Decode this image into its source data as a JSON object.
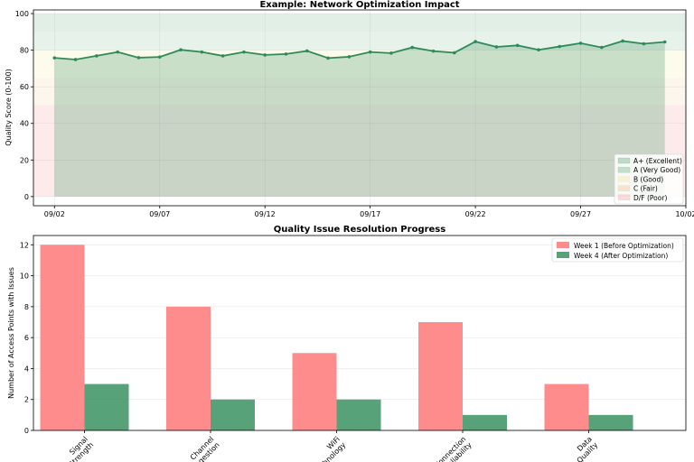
{
  "colors": {
    "excellent": "#2e8b57",
    "very_good": "#3c9a54",
    "good": "#f3e27a",
    "fair": "#f0b36a",
    "poor": "#f08080",
    "line": "#2e8b57",
    "before": "#ff7f7f",
    "after": "#2e8b57"
  },
  "chart_data": [
    {
      "type": "line",
      "title": "Example: Network Optimization Impact",
      "xlabel": "",
      "ylabel": "Quality Score (0-100)",
      "ylim": [
        -5,
        102
      ],
      "yticks": [
        0,
        20,
        40,
        60,
        80,
        100
      ],
      "xlim": [
        0,
        31
      ],
      "xticks": [
        {
          "x": 1,
          "label": "09/02"
        },
        {
          "x": 6,
          "label": "09/07"
        },
        {
          "x": 11,
          "label": "09/12"
        },
        {
          "x": 16,
          "label": "09/17"
        },
        {
          "x": 21,
          "label": "09/22"
        },
        {
          "x": 26,
          "label": "09/27"
        },
        {
          "x": 31,
          "label": "10/02"
        }
      ],
      "grid": true,
      "bands": [
        {
          "name": "A+ (Excellent)",
          "from": 90,
          "to": 100,
          "color_key": "excellent"
        },
        {
          "name": "A (Very Good)",
          "from": 80,
          "to": 90,
          "color_key": "very_good"
        },
        {
          "name": "B (Good)",
          "from": 65,
          "to": 80,
          "color_key": "good"
        },
        {
          "name": "C (Fair)",
          "from": 50,
          "to": 65,
          "color_key": "fair"
        },
        {
          "name": "D/F (Poor)",
          "from": 0,
          "to": 50,
          "color_key": "poor"
        }
      ],
      "legend_position": "bottom-right",
      "x": [
        1,
        2,
        3,
        4,
        5,
        6,
        7,
        8,
        9,
        10,
        11,
        12,
        13,
        14,
        15,
        16,
        17,
        18,
        19,
        20,
        21,
        22,
        23,
        24,
        25,
        26,
        27,
        28,
        29,
        30
      ],
      "values": [
        75.8,
        74.9,
        76.9,
        79.0,
        75.9,
        76.3,
        80.2,
        79.0,
        76.9,
        79.0,
        77.4,
        77.9,
        79.6,
        75.7,
        76.4,
        79.0,
        78.4,
        81.5,
        79.5,
        78.6,
        84.7,
        81.8,
        82.6,
        80.2,
        82.0,
        83.8,
        81.5,
        85.0,
        83.5,
        84.5
      ]
    },
    {
      "type": "bar",
      "title": "Quality Issue Resolution Progress",
      "xlabel": "",
      "ylabel": "Number of Access Points with Issues",
      "ylim": [
        0,
        12.6
      ],
      "yticks": [
        0,
        2,
        4,
        6,
        8,
        10,
        12
      ],
      "grid": true,
      "legend_position": "top-right",
      "categories": [
        "Signal\nStrength",
        "Channel\nCongestion",
        "WiFi\nTechnology",
        "Connection\nReliability",
        "Data\nQuality"
      ],
      "series": [
        {
          "name": "Week 1 (Before Optimization)",
          "color_key": "before",
          "values": [
            12,
            8,
            5,
            7,
            3
          ]
        },
        {
          "name": "Week 4 (After Optimization)",
          "color_key": "after",
          "values": [
            3,
            2,
            2,
            1,
            1
          ]
        }
      ]
    }
  ]
}
